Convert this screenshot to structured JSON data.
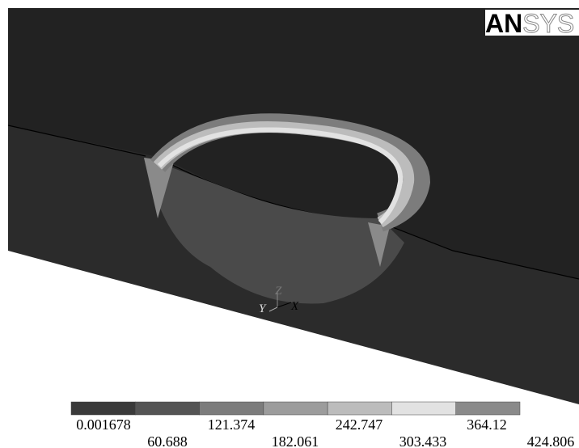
{
  "logo": {
    "bold": "AN",
    "light": "SYS"
  },
  "triad": {
    "y": "Y",
    "z": "Z",
    "x": "X"
  },
  "legend": {
    "labels": [
      "0.001678",
      "60.688",
      "121.374",
      "182.061",
      "242.747",
      "303.433",
      "364.12",
      "424.806"
    ],
    "colors": [
      "#3a3a3a",
      "#545454",
      "#7c7c7c",
      "#9c9c9c",
      "#bcbcbc",
      "#e2e2e2",
      "#8a8a8a"
    ]
  }
}
